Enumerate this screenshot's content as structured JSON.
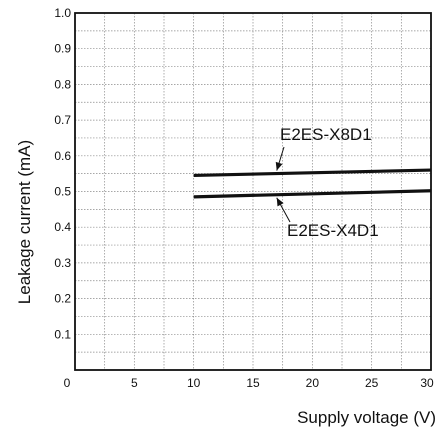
{
  "chart_data": {
    "type": "line",
    "title": "",
    "xlabel": "Supply voltage (V)",
    "ylabel": "Leakage current  (mA)",
    "xlim": [
      0,
      30
    ],
    "ylim": [
      0,
      1.0
    ],
    "xticks": [
      "0",
      "5",
      "10",
      "15",
      "20",
      "25",
      "30"
    ],
    "yticks": [
      "0.1",
      "0.2",
      "0.3",
      "0.4",
      "0.5",
      "0.6",
      "0.7",
      "0.8",
      "0.9",
      "1.0"
    ],
    "grid": true,
    "series": [
      {
        "name": "E2ES-X8D1",
        "x": [
          10,
          30
        ],
        "y": [
          0.545,
          0.56
        ]
      },
      {
        "name": "E2ES-X4D1",
        "x": [
          10,
          30
        ],
        "y": [
          0.485,
          0.502
        ]
      }
    ],
    "annotations": [
      {
        "text": "E2ES-X8D1",
        "series": 0
      },
      {
        "text": "E2ES-X4D1",
        "series": 1
      }
    ]
  }
}
